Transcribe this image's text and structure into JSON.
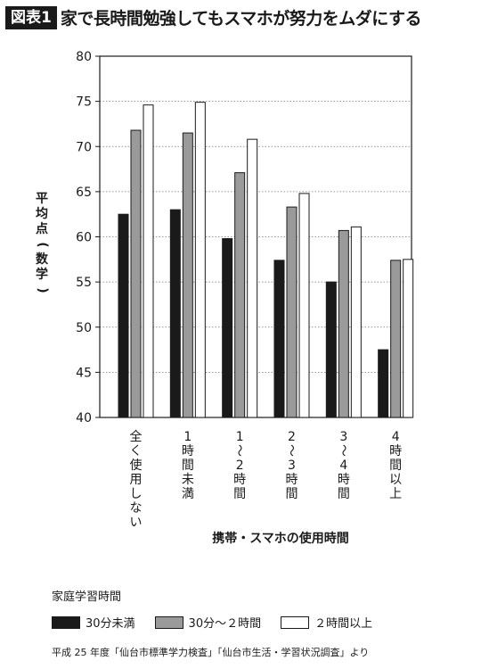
{
  "header": {
    "badge": "図表1",
    "title": "家で長時間勉強してもスマホが努力をムダにする"
  },
  "chart_data": {
    "type": "bar",
    "title": "家で長時間勉強してもスマホが努力をムダにする",
    "ylabel": "平均点(数学)",
    "xlabel": "携帯・スマホの使用時間",
    "ylim": [
      40,
      80
    ],
    "yticks": [
      40,
      45,
      50,
      55,
      60,
      65,
      70,
      75,
      80
    ],
    "grid": true,
    "legend_title": "家庭学習時間",
    "legend_position": "bottom",
    "categories": [
      "全く使用しない",
      "1時間未満",
      "1〜2時間",
      "2〜3時間",
      "3〜4時間",
      "4時間以上"
    ],
    "category_labels": [
      [
        "全",
        "く",
        "使",
        "用",
        "し",
        "な",
        "い"
      ],
      [
        "1",
        "時",
        "間",
        "未",
        "満"
      ],
      [
        "1",
        "〜",
        "2",
        "時",
        "間"
      ],
      [
        "2",
        "〜",
        "3",
        "時",
        "間"
      ],
      [
        "3",
        "〜",
        "4",
        "時",
        "間"
      ],
      [
        "4",
        "時",
        "間",
        "以",
        "上"
      ]
    ],
    "series": [
      {
        "name": "30分未満",
        "color": "#1a1a1a",
        "values": [
          62.5,
          63.0,
          59.8,
          57.4,
          55.0,
          47.5
        ]
      },
      {
        "name": "30分〜２時間",
        "color": "#9a9a9a",
        "values": [
          71.8,
          71.5,
          67.1,
          63.3,
          60.7,
          57.4
        ]
      },
      {
        "name": "２時間以上",
        "color": "#ffffff",
        "values": [
          74.6,
          74.9,
          70.8,
          64.8,
          61.1,
          57.5
        ]
      }
    ],
    "source": "平成 25 年度「仙台市標準学力検査」「仙台市生活・学習状況調査」より"
  }
}
